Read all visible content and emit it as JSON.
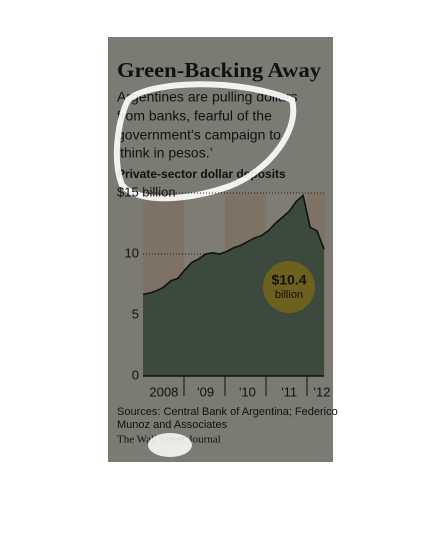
{
  "chart_data": {
    "type": "area",
    "title": "Green-Backing Away",
    "subtitle": [
      "Argentines are pulling dollars",
      "from banks, fearful of the",
      "government’s campaign to",
      "‘think in pesos.’"
    ],
    "y_label": "Private-sector dollar deposits",
    "categories": [
      null,
      null,
      null,
      "2008",
      null,
      null,
      null,
      null,
      null,
      "'09",
      null,
      null,
      null,
      null,
      null,
      "'10",
      null,
      null,
      null,
      null,
      null,
      "'11",
      null,
      null,
      null,
      null,
      "'12"
    ],
    "values": [
      6.7,
      6.8,
      7.0,
      7.3,
      7.8,
      8.0,
      8.7,
      9.3,
      9.6,
      10.0,
      10.1,
      10.0,
      10.2,
      10.5,
      10.7,
      11.0,
      11.3,
      11.5,
      11.9,
      12.5,
      13.0,
      13.5,
      14.3,
      14.8,
      12.2,
      11.9,
      10.4
    ],
    "color": "#3b4a3c",
    "line_color": "#111111",
    "ylim": [
      0,
      15
    ],
    "yticks": [
      0,
      5,
      10,
      {
        "value": 15,
        "label": "$15 billion"
      }
    ],
    "grid": true,
    "annotation": {
      "value": "$10.4",
      "unit": "billion",
      "color": "#6e6120"
    },
    "source": [
      "Sources: Central Bank of Argentina; Federico",
      "Munoz and Associates"
    ],
    "credit": "The Wall Street Journal"
  }
}
